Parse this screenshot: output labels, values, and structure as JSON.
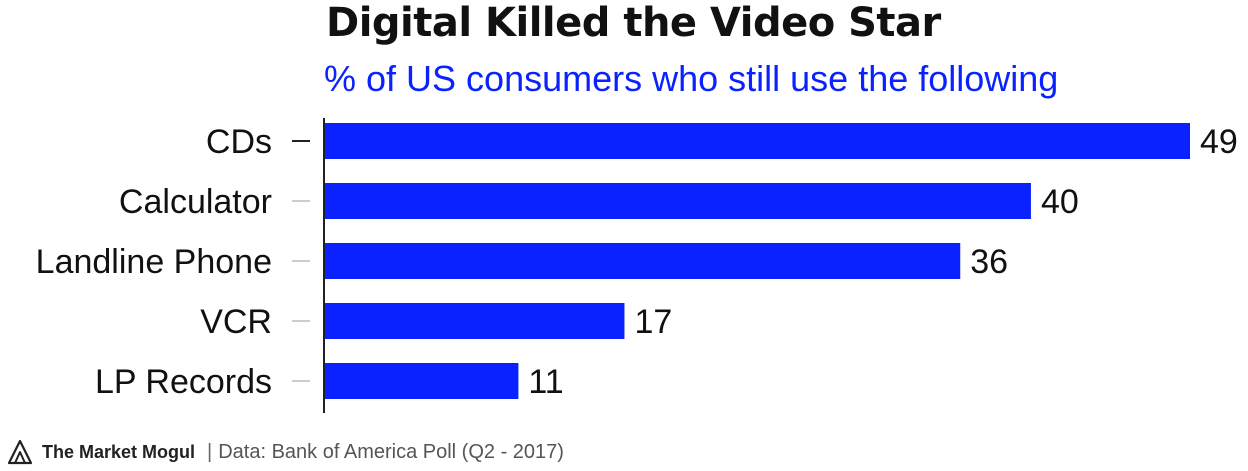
{
  "header": {
    "title": "Digital Killed the Video Star",
    "subtitle": "% of US consumers who still use the following"
  },
  "footer": {
    "brand": "The Market Mogul",
    "separator": "|",
    "source": "Data: Bank of America Poll (Q2 - 2017)",
    "logo_icon": "mountain-logo-icon"
  },
  "colors": {
    "bar": "#0a22ff",
    "subtitle": "#0a22ff",
    "text": "#111111",
    "axis": "#222222",
    "tick": "#cccccc"
  },
  "chart_data": {
    "type": "bar",
    "orientation": "horizontal",
    "title": "Digital Killed the Video Star",
    "subtitle": "% of US consumers who still use the following",
    "categories": [
      "CDs",
      "Calculator",
      "Landline Phone",
      "VCR",
      "LP Records"
    ],
    "values": [
      49,
      40,
      36,
      17,
      11
    ],
    "xlim": [
      0,
      49
    ],
    "grid": false,
    "data_labels": true
  }
}
